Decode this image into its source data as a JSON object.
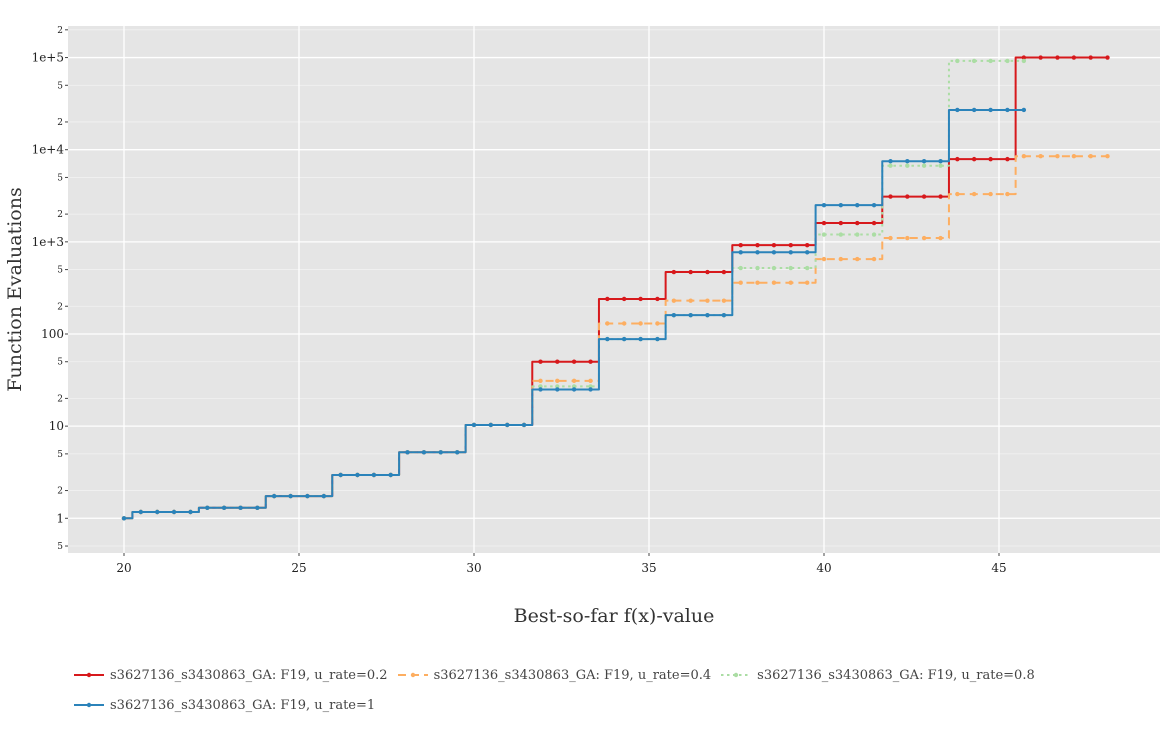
{
  "chart_data": {
    "type": "line",
    "title": "",
    "xlabel": "Best-so-far f(x)-value",
    "ylabel": "Function Evaluations",
    "xlim": [
      18.4,
      49.6
    ],
    "ylim": [
      0.42,
      220000
    ],
    "yscale": "log",
    "grid": true,
    "legend_position": "bottom",
    "x_ticks": [
      20,
      25,
      30,
      35,
      40,
      45
    ],
    "y_major_ticks": [
      {
        "value": 1,
        "label": "1"
      },
      {
        "value": 10,
        "label": "10"
      },
      {
        "value": 100,
        "label": "100"
      },
      {
        "value": 1000,
        "label": "1e+3"
      },
      {
        "value": 10000,
        "label": "1e+4"
      },
      {
        "value": 100000,
        "label": "1e+5"
      }
    ],
    "y_minor_ticks": [
      {
        "value": 0.5,
        "label": "5"
      },
      {
        "value": 2,
        "label": "2"
      },
      {
        "value": 5,
        "label": "5"
      },
      {
        "value": 20,
        "label": "2"
      },
      {
        "value": 50,
        "label": "5"
      },
      {
        "value": 200,
        "label": "2"
      },
      {
        "value": 500,
        "label": "5"
      },
      {
        "value": 2000,
        "label": "2"
      },
      {
        "value": 5000,
        "label": "5"
      },
      {
        "value": 20000,
        "label": "2"
      },
      {
        "value": 50000,
        "label": "5"
      },
      {
        "value": 200000,
        "label": "2"
      }
    ],
    "series": [
      {
        "name": "s3627136_s3430863_GA: F19, u_rate=0.2",
        "color": "#d7191c",
        "dash": "solid",
        "x": [
          20,
          20.48,
          20.95,
          21.43,
          21.9,
          22.38,
          22.86,
          23.33,
          23.81,
          24.29,
          24.76,
          25.24,
          25.71,
          26.19,
          26.67,
          27.14,
          27.62,
          28.1,
          28.57,
          29.05,
          29.52,
          30,
          30.48,
          30.95,
          31.43,
          31.9,
          32.38,
          32.86,
          33.33,
          33.81,
          34.29,
          34.76,
          35.24,
          35.71,
          36.19,
          36.67,
          37.14,
          37.62,
          38.1,
          38.57,
          39.05,
          39.52,
          40,
          40.48,
          40.95,
          41.43,
          41.9,
          42.38,
          42.86,
          43.33,
          43.81,
          44.29,
          44.76,
          45.24,
          45.71,
          46.19,
          46.67,
          47.14,
          47.62,
          48.1
        ],
        "y": [
          1,
          1.17,
          1.17,
          1.17,
          1.17,
          1.3,
          1.3,
          1.3,
          1.3,
          1.74,
          1.74,
          1.74,
          1.74,
          2.95,
          2.95,
          2.95,
          2.95,
          5.2,
          5.2,
          5.2,
          5.2,
          10.3,
          10.3,
          10.3,
          10.3,
          50,
          50,
          50,
          50,
          240,
          240,
          240,
          240,
          470,
          470,
          470,
          470,
          920,
          920,
          920,
          920,
          920,
          1600,
          1600,
          1600,
          1600,
          3100,
          3100,
          3100,
          3100,
          7900,
          7900,
          7900,
          7900,
          100000,
          100000,
          100000,
          100000,
          100000,
          100000
        ]
      },
      {
        "name": "s3627136_s3430863_GA: F19, u_rate=0.4",
        "color": "#fdae61",
        "dash": "dashed",
        "x": [
          20,
          20.48,
          20.95,
          21.43,
          21.9,
          22.38,
          22.86,
          23.33,
          23.81,
          24.29,
          24.76,
          25.24,
          25.71,
          26.19,
          26.67,
          27.14,
          27.62,
          28.1,
          28.57,
          29.05,
          29.52,
          30,
          30.48,
          30.95,
          31.43,
          31.9,
          32.38,
          32.86,
          33.33,
          33.81,
          34.29,
          34.76,
          35.24,
          35.71,
          36.19,
          36.67,
          37.14,
          37.62,
          38.1,
          38.57,
          39.05,
          39.52,
          40,
          40.48,
          40.95,
          41.43,
          41.9,
          42.38,
          42.86,
          43.33,
          43.81,
          44.29,
          44.76,
          45.24,
          45.71,
          46.19,
          46.67,
          47.14,
          47.62,
          48.1
        ],
        "y": [
          1,
          1.17,
          1.17,
          1.17,
          1.17,
          1.3,
          1.3,
          1.3,
          1.3,
          1.74,
          1.74,
          1.74,
          1.74,
          2.95,
          2.95,
          2.95,
          2.95,
          5.2,
          5.2,
          5.2,
          5.2,
          10.3,
          10.3,
          10.3,
          10.3,
          31,
          31,
          31,
          31,
          130,
          130,
          130,
          130,
          230,
          230,
          230,
          230,
          360,
          360,
          360,
          360,
          360,
          650,
          650,
          650,
          650,
          1100,
          1100,
          1100,
          1100,
          3300,
          3300,
          3300,
          3300,
          8500,
          8500,
          8500,
          8500,
          8500,
          8500
        ]
      },
      {
        "name": "s3627136_s3430863_GA: F19, u_rate=0.8",
        "color": "#abdda4",
        "dash": "dotted",
        "x": [
          20,
          20.48,
          20.95,
          21.43,
          21.9,
          22.38,
          22.86,
          23.33,
          23.81,
          24.29,
          24.76,
          25.24,
          25.71,
          26.19,
          26.67,
          27.14,
          27.62,
          28.1,
          28.57,
          29.05,
          29.52,
          30,
          30.48,
          30.95,
          31.43,
          31.9,
          32.38,
          32.86,
          33.33,
          33.81,
          34.29,
          34.76,
          35.24,
          35.71,
          36.19,
          36.67,
          37.14,
          37.62,
          38.1,
          38.57,
          39.05,
          39.52,
          40,
          40.48,
          40.95,
          41.43,
          41.9,
          42.38,
          42.86,
          43.33,
          43.81,
          44.29,
          44.76,
          45.24,
          45.71
        ],
        "y": [
          1,
          1.17,
          1.17,
          1.17,
          1.17,
          1.3,
          1.3,
          1.3,
          1.3,
          1.74,
          1.74,
          1.74,
          1.74,
          2.95,
          2.95,
          2.95,
          2.95,
          5.2,
          5.2,
          5.2,
          5.2,
          10.3,
          10.3,
          10.3,
          10.3,
          27,
          27,
          27,
          27,
          88,
          88,
          88,
          88,
          160,
          160,
          160,
          160,
          520,
          520,
          520,
          520,
          520,
          1200,
          1200,
          1200,
          1200,
          6700,
          6700,
          6700,
          6700,
          92000,
          92000,
          92000,
          92000,
          92000
        ]
      },
      {
        "name": "s3627136_s3430863_GA: F19, u_rate=1",
        "color": "#2b83ba",
        "dash": "solid",
        "x": [
          20,
          20.48,
          20.95,
          21.43,
          21.9,
          22.38,
          22.86,
          23.33,
          23.81,
          24.29,
          24.76,
          25.24,
          25.71,
          26.19,
          26.67,
          27.14,
          27.62,
          28.1,
          28.57,
          29.05,
          29.52,
          30,
          30.48,
          30.95,
          31.43,
          31.9,
          32.38,
          32.86,
          33.33,
          33.81,
          34.29,
          34.76,
          35.24,
          35.71,
          36.19,
          36.67,
          37.14,
          37.62,
          38.1,
          38.57,
          39.05,
          39.52,
          40,
          40.48,
          40.95,
          41.43,
          41.9,
          42.38,
          42.86,
          43.33,
          43.81,
          44.29,
          44.76,
          45.24,
          45.71
        ],
        "y": [
          1,
          1.17,
          1.17,
          1.17,
          1.17,
          1.3,
          1.3,
          1.3,
          1.3,
          1.74,
          1.74,
          1.74,
          1.74,
          2.95,
          2.95,
          2.95,
          2.95,
          5.2,
          5.2,
          5.2,
          5.2,
          10.3,
          10.3,
          10.3,
          10.3,
          25,
          25,
          25,
          25,
          88,
          88,
          88,
          88,
          160,
          160,
          160,
          160,
          770,
          770,
          770,
          770,
          770,
          2500,
          2500,
          2500,
          2500,
          7500,
          7500,
          7500,
          7500,
          27000,
          27000,
          27000,
          27000,
          27000
        ]
      }
    ]
  }
}
